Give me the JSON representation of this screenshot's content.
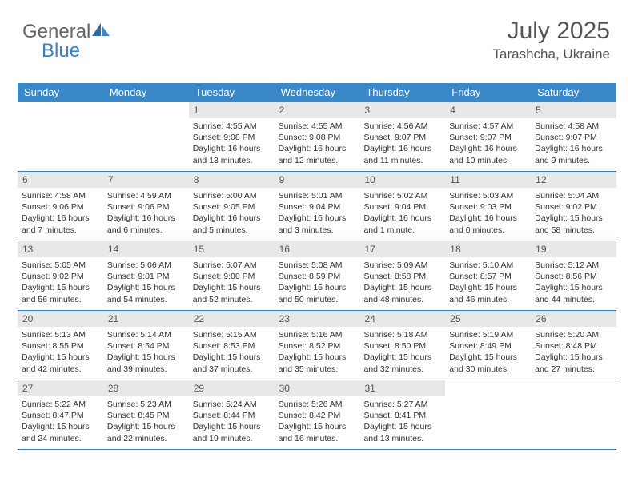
{
  "logo": {
    "part1": "General",
    "part2": "Blue"
  },
  "header": {
    "title": "July 2025",
    "location": "Tarashcha, Ukraine"
  },
  "colors": {
    "header_bar": "#3b88c8",
    "accent": "#3b7fc4",
    "day_num_bg": "#e8e8e8",
    "text_muted": "#555",
    "text_body": "#333"
  },
  "daysOfWeek": [
    "Sunday",
    "Monday",
    "Tuesday",
    "Wednesday",
    "Thursday",
    "Friday",
    "Saturday"
  ],
  "weeks": [
    [
      {
        "n": "",
        "lines": []
      },
      {
        "n": "",
        "lines": []
      },
      {
        "n": "1",
        "lines": [
          "Sunrise: 4:55 AM",
          "Sunset: 9:08 PM",
          "Daylight: 16 hours",
          "and 13 minutes."
        ]
      },
      {
        "n": "2",
        "lines": [
          "Sunrise: 4:55 AM",
          "Sunset: 9:08 PM",
          "Daylight: 16 hours",
          "and 12 minutes."
        ]
      },
      {
        "n": "3",
        "lines": [
          "Sunrise: 4:56 AM",
          "Sunset: 9:07 PM",
          "Daylight: 16 hours",
          "and 11 minutes."
        ]
      },
      {
        "n": "4",
        "lines": [
          "Sunrise: 4:57 AM",
          "Sunset: 9:07 PM",
          "Daylight: 16 hours",
          "and 10 minutes."
        ]
      },
      {
        "n": "5",
        "lines": [
          "Sunrise: 4:58 AM",
          "Sunset: 9:07 PM",
          "Daylight: 16 hours",
          "and 9 minutes."
        ]
      }
    ],
    [
      {
        "n": "6",
        "lines": [
          "Sunrise: 4:58 AM",
          "Sunset: 9:06 PM",
          "Daylight: 16 hours",
          "and 7 minutes."
        ]
      },
      {
        "n": "7",
        "lines": [
          "Sunrise: 4:59 AM",
          "Sunset: 9:06 PM",
          "Daylight: 16 hours",
          "and 6 minutes."
        ]
      },
      {
        "n": "8",
        "lines": [
          "Sunrise: 5:00 AM",
          "Sunset: 9:05 PM",
          "Daylight: 16 hours",
          "and 5 minutes."
        ]
      },
      {
        "n": "9",
        "lines": [
          "Sunrise: 5:01 AM",
          "Sunset: 9:04 PM",
          "Daylight: 16 hours",
          "and 3 minutes."
        ]
      },
      {
        "n": "10",
        "lines": [
          "Sunrise: 5:02 AM",
          "Sunset: 9:04 PM",
          "Daylight: 16 hours",
          "and 1 minute."
        ]
      },
      {
        "n": "11",
        "lines": [
          "Sunrise: 5:03 AM",
          "Sunset: 9:03 PM",
          "Daylight: 16 hours",
          "and 0 minutes."
        ]
      },
      {
        "n": "12",
        "lines": [
          "Sunrise: 5:04 AM",
          "Sunset: 9:02 PM",
          "Daylight: 15 hours",
          "and 58 minutes."
        ]
      }
    ],
    [
      {
        "n": "13",
        "lines": [
          "Sunrise: 5:05 AM",
          "Sunset: 9:02 PM",
          "Daylight: 15 hours",
          "and 56 minutes."
        ]
      },
      {
        "n": "14",
        "lines": [
          "Sunrise: 5:06 AM",
          "Sunset: 9:01 PM",
          "Daylight: 15 hours",
          "and 54 minutes."
        ]
      },
      {
        "n": "15",
        "lines": [
          "Sunrise: 5:07 AM",
          "Sunset: 9:00 PM",
          "Daylight: 15 hours",
          "and 52 minutes."
        ]
      },
      {
        "n": "16",
        "lines": [
          "Sunrise: 5:08 AM",
          "Sunset: 8:59 PM",
          "Daylight: 15 hours",
          "and 50 minutes."
        ]
      },
      {
        "n": "17",
        "lines": [
          "Sunrise: 5:09 AM",
          "Sunset: 8:58 PM",
          "Daylight: 15 hours",
          "and 48 minutes."
        ]
      },
      {
        "n": "18",
        "lines": [
          "Sunrise: 5:10 AM",
          "Sunset: 8:57 PM",
          "Daylight: 15 hours",
          "and 46 minutes."
        ]
      },
      {
        "n": "19",
        "lines": [
          "Sunrise: 5:12 AM",
          "Sunset: 8:56 PM",
          "Daylight: 15 hours",
          "and 44 minutes."
        ]
      }
    ],
    [
      {
        "n": "20",
        "lines": [
          "Sunrise: 5:13 AM",
          "Sunset: 8:55 PM",
          "Daylight: 15 hours",
          "and 42 minutes."
        ]
      },
      {
        "n": "21",
        "lines": [
          "Sunrise: 5:14 AM",
          "Sunset: 8:54 PM",
          "Daylight: 15 hours",
          "and 39 minutes."
        ]
      },
      {
        "n": "22",
        "lines": [
          "Sunrise: 5:15 AM",
          "Sunset: 8:53 PM",
          "Daylight: 15 hours",
          "and 37 minutes."
        ]
      },
      {
        "n": "23",
        "lines": [
          "Sunrise: 5:16 AM",
          "Sunset: 8:52 PM",
          "Daylight: 15 hours",
          "and 35 minutes."
        ]
      },
      {
        "n": "24",
        "lines": [
          "Sunrise: 5:18 AM",
          "Sunset: 8:50 PM",
          "Daylight: 15 hours",
          "and 32 minutes."
        ]
      },
      {
        "n": "25",
        "lines": [
          "Sunrise: 5:19 AM",
          "Sunset: 8:49 PM",
          "Daylight: 15 hours",
          "and 30 minutes."
        ]
      },
      {
        "n": "26",
        "lines": [
          "Sunrise: 5:20 AM",
          "Sunset: 8:48 PM",
          "Daylight: 15 hours",
          "and 27 minutes."
        ]
      }
    ],
    [
      {
        "n": "27",
        "lines": [
          "Sunrise: 5:22 AM",
          "Sunset: 8:47 PM",
          "Daylight: 15 hours",
          "and 24 minutes."
        ]
      },
      {
        "n": "28",
        "lines": [
          "Sunrise: 5:23 AM",
          "Sunset: 8:45 PM",
          "Daylight: 15 hours",
          "and 22 minutes."
        ]
      },
      {
        "n": "29",
        "lines": [
          "Sunrise: 5:24 AM",
          "Sunset: 8:44 PM",
          "Daylight: 15 hours",
          "and 19 minutes."
        ]
      },
      {
        "n": "30",
        "lines": [
          "Sunrise: 5:26 AM",
          "Sunset: 8:42 PM",
          "Daylight: 15 hours",
          "and 16 minutes."
        ]
      },
      {
        "n": "31",
        "lines": [
          "Sunrise: 5:27 AM",
          "Sunset: 8:41 PM",
          "Daylight: 15 hours",
          "and 13 minutes."
        ]
      },
      {
        "n": "",
        "lines": []
      },
      {
        "n": "",
        "lines": []
      }
    ]
  ]
}
